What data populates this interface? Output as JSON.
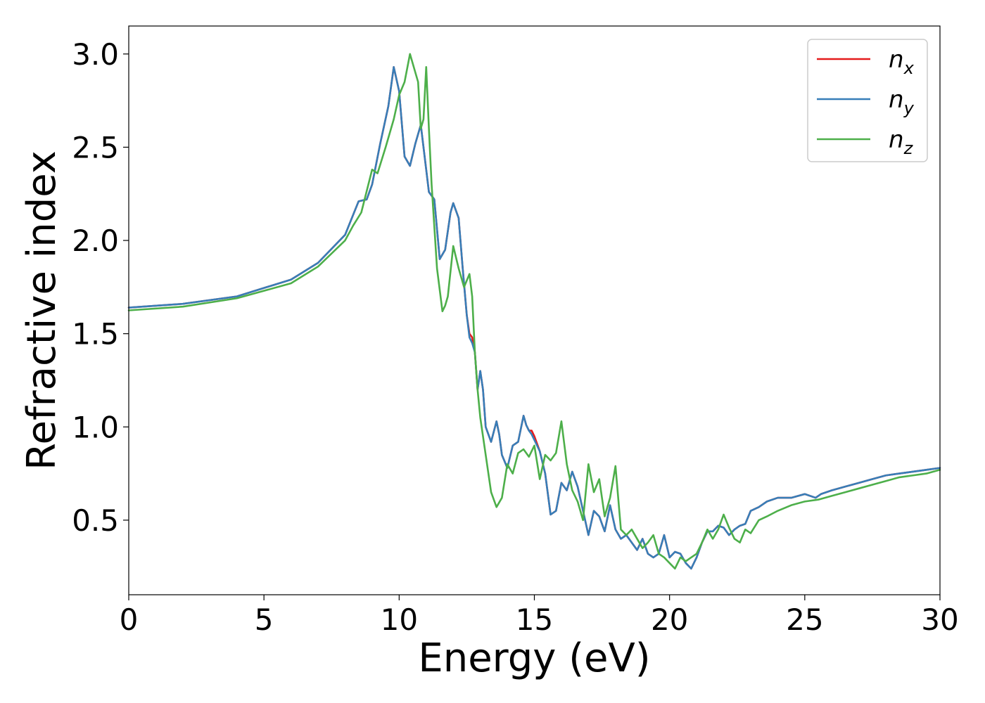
{
  "chart_data": {
    "type": "line",
    "title": "",
    "xlabel": "Energy (eV)",
    "ylabel": "Refractive index",
    "xlim": [
      0,
      30
    ],
    "ylim": [
      0.1,
      3.15
    ],
    "xticks": [
      0,
      5,
      10,
      15,
      20,
      25,
      30
    ],
    "xtick_labels": [
      "0",
      "5",
      "10",
      "15",
      "20",
      "25",
      "30"
    ],
    "yticks": [
      0.5,
      1.0,
      1.5,
      2.0,
      2.5,
      3.0
    ],
    "ytick_labels": [
      "0.5",
      "1.0",
      "1.5",
      "2.0",
      "2.5",
      "3.0"
    ],
    "grid": false,
    "legend_position": "top-right",
    "series": [
      {
        "name": "n_x",
        "legend_base": "n",
        "legend_sub": "x",
        "color": "#e41a1c",
        "x": [
          0,
          2,
          4,
          6,
          7,
          8,
          8.5,
          8.8,
          9.0,
          9.3,
          9.6,
          9.8,
          10.0,
          10.2,
          10.4,
          10.6,
          10.8,
          11.0,
          11.1,
          11.3,
          11.5,
          11.7,
          11.9,
          12.0,
          12.2,
          12.35,
          12.5,
          12.6,
          12.7,
          12.8,
          12.9,
          13.0,
          13.1,
          13.2,
          13.4,
          13.6,
          13.7,
          13.8,
          14.0,
          14.2,
          14.4,
          14.6,
          14.7,
          14.8,
          14.9,
          15.0,
          15.2,
          15.4,
          15.6,
          15.8,
          16.0,
          16.2,
          16.4,
          16.6,
          16.8,
          17.0,
          17.2,
          17.4,
          17.6,
          17.8,
          18.0,
          18.2,
          18.4,
          18.6,
          18.8,
          19.0,
          19.2,
          19.4,
          19.6,
          19.8,
          20.0,
          20.2,
          20.4,
          20.6,
          20.8,
          21.0,
          21.2,
          21.4,
          21.6,
          21.8,
          22.0,
          22.2,
          22.4,
          22.6,
          22.8,
          23.0,
          23.3,
          23.6,
          24.0,
          24.5,
          25.0,
          25.4,
          25.6,
          26.0,
          26.5,
          27.0,
          27.5,
          28.0,
          28.5,
          29.0,
          29.5,
          30.0
        ],
        "y": [
          1.64,
          1.66,
          1.7,
          1.79,
          1.88,
          2.03,
          2.21,
          2.22,
          2.3,
          2.52,
          2.72,
          2.93,
          2.8,
          2.45,
          2.4,
          2.52,
          2.62,
          2.38,
          2.26,
          2.22,
          1.9,
          1.95,
          2.15,
          2.2,
          2.12,
          1.85,
          1.6,
          1.5,
          1.48,
          1.4,
          1.2,
          1.3,
          1.2,
          1.0,
          0.92,
          1.03,
          0.96,
          0.85,
          0.78,
          0.9,
          0.92,
          1.06,
          1.01,
          0.98,
          0.98,
          0.95,
          0.87,
          0.75,
          0.53,
          0.55,
          0.7,
          0.66,
          0.76,
          0.68,
          0.55,
          0.42,
          0.55,
          0.52,
          0.44,
          0.58,
          0.45,
          0.4,
          0.42,
          0.38,
          0.34,
          0.4,
          0.32,
          0.3,
          0.32,
          0.42,
          0.3,
          0.33,
          0.32,
          0.27,
          0.24,
          0.3,
          0.38,
          0.44,
          0.44,
          0.47,
          0.46,
          0.42,
          0.45,
          0.47,
          0.48,
          0.55,
          0.57,
          0.6,
          0.62,
          0.62,
          0.64,
          0.62,
          0.64,
          0.66,
          0.68,
          0.7,
          0.72,
          0.74,
          0.75,
          0.76,
          0.77,
          0.78
        ]
      },
      {
        "name": "n_y",
        "legend_base": "n",
        "legend_sub": "y",
        "color": "#377eb8",
        "x": [
          0,
          2,
          4,
          6,
          7,
          8,
          8.5,
          8.8,
          9.0,
          9.3,
          9.6,
          9.8,
          10.0,
          10.2,
          10.4,
          10.6,
          10.8,
          11.0,
          11.1,
          11.3,
          11.5,
          11.7,
          11.9,
          12.0,
          12.2,
          12.35,
          12.5,
          12.6,
          12.7,
          12.8,
          12.9,
          13.0,
          13.1,
          13.2,
          13.4,
          13.6,
          13.7,
          13.8,
          14.0,
          14.2,
          14.4,
          14.6,
          14.7,
          14.8,
          14.9,
          15.0,
          15.2,
          15.4,
          15.6,
          15.8,
          16.0,
          16.2,
          16.4,
          16.6,
          16.8,
          17.0,
          17.2,
          17.4,
          17.6,
          17.8,
          18.0,
          18.2,
          18.4,
          18.6,
          18.8,
          19.0,
          19.2,
          19.4,
          19.6,
          19.8,
          20.0,
          20.2,
          20.4,
          20.6,
          20.8,
          21.0,
          21.2,
          21.4,
          21.6,
          21.8,
          22.0,
          22.2,
          22.4,
          22.6,
          22.8,
          23.0,
          23.3,
          23.6,
          24.0,
          24.5,
          25.0,
          25.4,
          25.6,
          26.0,
          26.5,
          27.0,
          27.5,
          28.0,
          28.5,
          29.0,
          29.5,
          30.0
        ],
        "y": [
          1.64,
          1.66,
          1.7,
          1.79,
          1.88,
          2.03,
          2.21,
          2.22,
          2.3,
          2.52,
          2.72,
          2.93,
          2.8,
          2.45,
          2.4,
          2.52,
          2.62,
          2.38,
          2.26,
          2.22,
          1.9,
          1.95,
          2.15,
          2.2,
          2.12,
          1.85,
          1.6,
          1.48,
          1.45,
          1.4,
          1.2,
          1.3,
          1.2,
          1.0,
          0.92,
          1.03,
          0.96,
          0.85,
          0.78,
          0.9,
          0.92,
          1.06,
          1.01,
          0.98,
          0.96,
          0.93,
          0.87,
          0.75,
          0.53,
          0.55,
          0.7,
          0.66,
          0.76,
          0.68,
          0.55,
          0.42,
          0.55,
          0.52,
          0.44,
          0.58,
          0.45,
          0.4,
          0.42,
          0.38,
          0.34,
          0.4,
          0.32,
          0.3,
          0.32,
          0.42,
          0.3,
          0.33,
          0.32,
          0.27,
          0.24,
          0.3,
          0.38,
          0.44,
          0.44,
          0.47,
          0.46,
          0.42,
          0.45,
          0.47,
          0.48,
          0.55,
          0.57,
          0.6,
          0.62,
          0.62,
          0.64,
          0.62,
          0.64,
          0.66,
          0.68,
          0.7,
          0.72,
          0.74,
          0.75,
          0.76,
          0.77,
          0.78
        ]
      },
      {
        "name": "n_z",
        "legend_base": "n",
        "legend_sub": "z",
        "color": "#4daf4a",
        "x": [
          0,
          2,
          4,
          6,
          7,
          8,
          8.3,
          8.6,
          9.0,
          9.2,
          9.5,
          9.8,
          10.0,
          10.2,
          10.4,
          10.6,
          10.7,
          10.8,
          10.9,
          11.0,
          11.1,
          11.2,
          11.4,
          11.6,
          11.7,
          11.8,
          12.0,
          12.2,
          12.4,
          12.6,
          12.7,
          12.8,
          12.9,
          13.0,
          13.2,
          13.4,
          13.6,
          13.8,
          14.0,
          14.2,
          14.4,
          14.6,
          14.8,
          15.0,
          15.2,
          15.4,
          15.6,
          15.8,
          16.0,
          16.2,
          16.4,
          16.6,
          16.8,
          17.0,
          17.2,
          17.4,
          17.6,
          17.8,
          18.0,
          18.2,
          18.4,
          18.6,
          18.8,
          19.0,
          19.2,
          19.4,
          19.6,
          19.8,
          20.0,
          20.2,
          20.4,
          20.6,
          20.8,
          21.0,
          21.2,
          21.4,
          21.6,
          21.8,
          22.0,
          22.2,
          22.4,
          22.6,
          22.8,
          23.0,
          23.3,
          23.6,
          24.0,
          24.5,
          25.0,
          25.5,
          26.0,
          26.5,
          27.0,
          27.5,
          28.0,
          28.5,
          29.0,
          29.5,
          30.0
        ],
        "y": [
          1.625,
          1.645,
          1.69,
          1.77,
          1.86,
          2.0,
          2.08,
          2.15,
          2.38,
          2.36,
          2.5,
          2.65,
          2.78,
          2.85,
          3.0,
          2.9,
          2.85,
          2.6,
          2.65,
          2.93,
          2.6,
          2.3,
          1.85,
          1.62,
          1.65,
          1.7,
          1.97,
          1.85,
          1.75,
          1.82,
          1.7,
          1.4,
          1.2,
          1.05,
          0.85,
          0.65,
          0.57,
          0.62,
          0.8,
          0.75,
          0.86,
          0.88,
          0.84,
          0.9,
          0.72,
          0.85,
          0.82,
          0.86,
          1.03,
          0.8,
          0.66,
          0.6,
          0.5,
          0.8,
          0.65,
          0.72,
          0.52,
          0.62,
          0.79,
          0.45,
          0.42,
          0.45,
          0.4,
          0.35,
          0.38,
          0.42,
          0.32,
          0.3,
          0.27,
          0.24,
          0.3,
          0.28,
          0.3,
          0.32,
          0.38,
          0.45,
          0.4,
          0.45,
          0.53,
          0.46,
          0.4,
          0.38,
          0.45,
          0.43,
          0.5,
          0.52,
          0.55,
          0.58,
          0.6,
          0.61,
          0.63,
          0.65,
          0.67,
          0.69,
          0.71,
          0.73,
          0.74,
          0.75,
          0.77
        ]
      }
    ]
  }
}
